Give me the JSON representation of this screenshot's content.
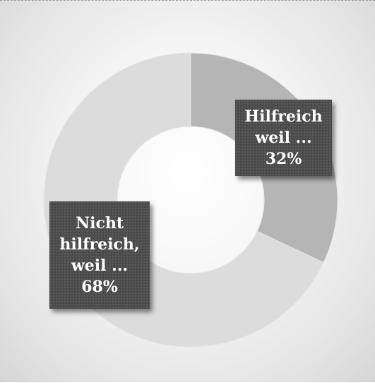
{
  "chart_data": {
    "type": "pie",
    "donut": true,
    "categories": [
      "Hilfreich weil ...",
      "Nicht hilfreich, weil ..."
    ],
    "values": [
      32,
      68
    ],
    "unit": "%",
    "colors": [
      "#b5b5b5",
      "#dcdcdc"
    ],
    "data_labels": [
      {
        "lines": [
          "Hilfreich",
          "weil ...",
          "32%"
        ]
      },
      {
        "lines": [
          "Nicht",
          "hilfreich,",
          "weil ...",
          "68%"
        ]
      }
    ]
  }
}
